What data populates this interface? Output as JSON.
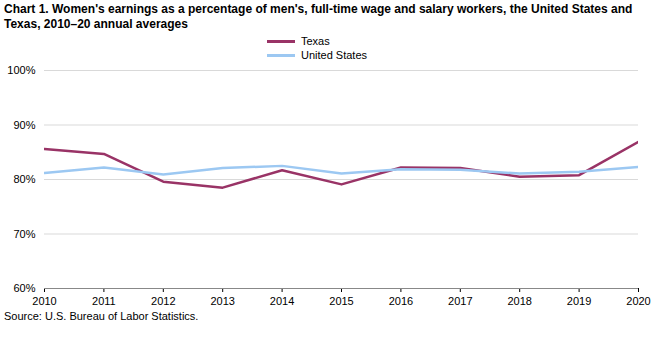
{
  "chart_data": {
    "type": "line",
    "title": "Chart 1. Women's earnings as a percentage of men's, full-time wage and salary workers, the United States and Texas, 2010–20  annual averages",
    "caption": "Source: U.S. Bureau of Labor Statistics.",
    "x": [
      2010,
      2011,
      2012,
      2013,
      2014,
      2015,
      2016,
      2017,
      2018,
      2019,
      2020
    ],
    "series": [
      {
        "name": "Texas",
        "color": "#993366",
        "values": [
          85.6,
          84.7,
          79.6,
          78.5,
          81.7,
          79.1,
          82.2,
          82.1,
          80.5,
          80.8,
          86.9
        ]
      },
      {
        "name": "United States",
        "color": "#9cc8f2",
        "values": [
          81.2,
          82.2,
          80.9,
          82.1,
          82.5,
          81.1,
          81.9,
          81.8,
          81.1,
          81.4,
          82.3
        ]
      }
    ],
    "xlim": [
      2010,
      2020
    ],
    "xticks": [
      2010,
      2011,
      2012,
      2013,
      2014,
      2015,
      2016,
      2017,
      2018,
      2019,
      2020
    ],
    "ylim": [
      60,
      100
    ],
    "yticks": [
      {
        "value": 60,
        "label": "60%"
      },
      {
        "value": 70,
        "label": "70%"
      },
      {
        "value": 80,
        "label": "80%"
      },
      {
        "value": 90,
        "label": "90%"
      },
      {
        "value": 100,
        "label": "100%"
      }
    ],
    "grid": true,
    "legend": "top"
  }
}
